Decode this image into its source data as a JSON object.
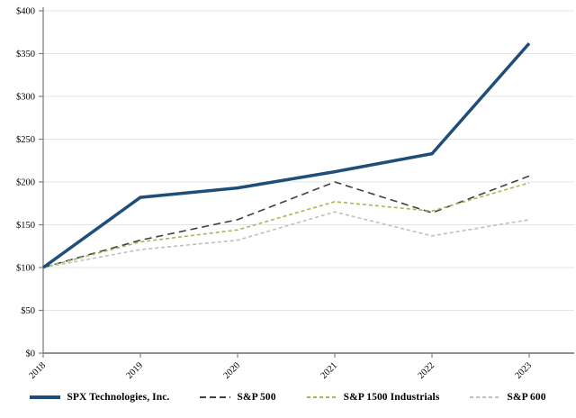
{
  "chart_data": {
    "type": "line",
    "categories": [
      "2018",
      "2019",
      "2020",
      "2021",
      "2022",
      "2023"
    ],
    "series": [
      {
        "name": "SPX Technologies, Inc.",
        "values": [
          100,
          182,
          193,
          212,
          233,
          362
        ],
        "color": "#1f4e79",
        "style": "solid",
        "width": 3.5
      },
      {
        "name": "S&P 500",
        "values": [
          100,
          132,
          156,
          200,
          164,
          207
        ],
        "color": "#404040",
        "style": "long-dash",
        "width": 1.6
      },
      {
        "name": "S&P 1500 Industrials",
        "values": [
          100,
          130,
          144,
          177,
          166,
          199
        ],
        "color": "#9bbb59",
        "style": "short-dash",
        "width": 1.6
      },
      {
        "name": "S&P 600",
        "values": [
          100,
          121,
          132,
          165,
          137,
          156
        ],
        "color": "#bfbfbf",
        "style": "short-dash",
        "width": 1.6
      }
    ],
    "ylim": [
      0,
      400
    ],
    "ytick_step": 50,
    "ytick_prefix": "$",
    "grid": true,
    "legend_position": "bottom",
    "xlabel": "",
    "ylabel": ""
  },
  "style": {
    "gridline_color": "#e4e4e4",
    "axis_color": "#808080",
    "tick_label_color": "#000000"
  }
}
